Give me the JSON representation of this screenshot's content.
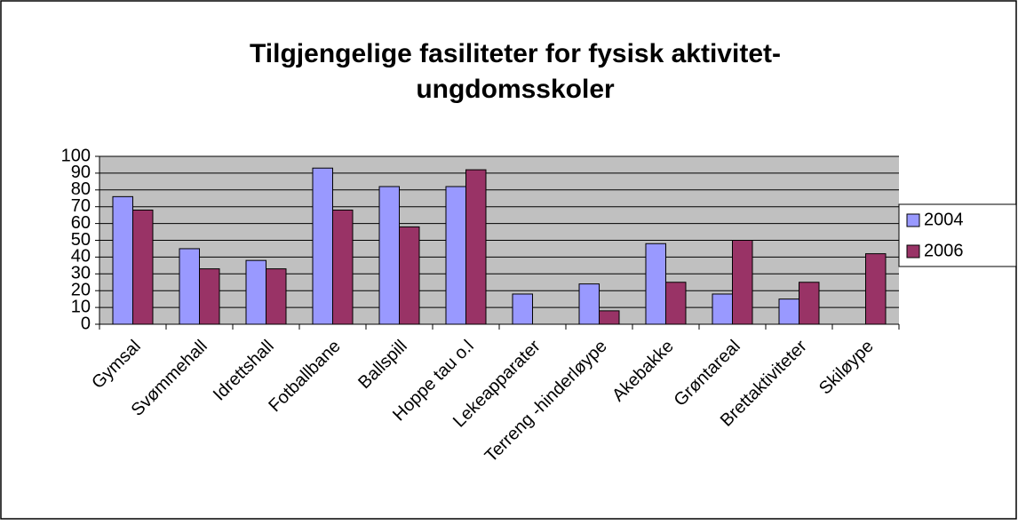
{
  "chart_data": {
    "type": "bar",
    "title": [
      "Tilgjengelige fasiliteter for fysisk aktivitet-",
      "ungdomsskoler"
    ],
    "categories": [
      "Gymsal",
      "Svømmehall",
      "Idrettshall",
      "Fotballbane",
      "Ballspill",
      "Hoppe tau o.l",
      "Lekeapparater",
      "Terreng -hinderløype",
      "Akebakke",
      "Grøntareal",
      "Brettaktiviteter",
      "Skiløype"
    ],
    "series": [
      {
        "name": "2004",
        "color": "#9999ff",
        "values": [
          76,
          45,
          38,
          93,
          82,
          82,
          18,
          24,
          48,
          18,
          15,
          null
        ]
      },
      {
        "name": "2006",
        "color": "#993366",
        "values": [
          68,
          33,
          33,
          68,
          58,
          92,
          null,
          8,
          25,
          50,
          25,
          42
        ]
      }
    ],
    "ylim": [
      0,
      100
    ],
    "yticks": [
      0,
      10,
      20,
      30,
      40,
      50,
      60,
      70,
      80,
      90,
      100
    ],
    "grid": true,
    "legend": "right"
  }
}
